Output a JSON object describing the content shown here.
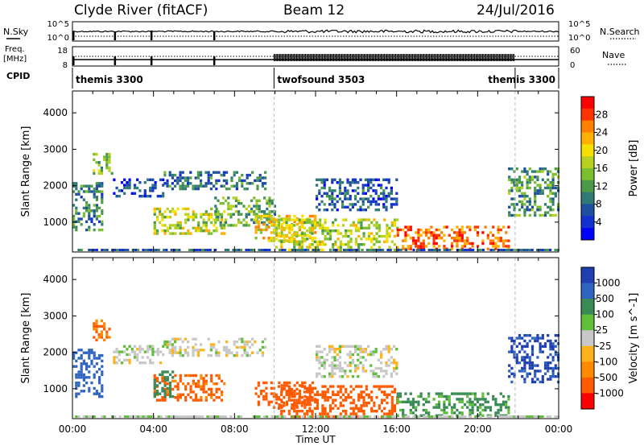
{
  "header": {
    "title": "Clyde River (fitACF)",
    "beam": "Beam 12",
    "date": "24/Jul/2016"
  },
  "nsky_panel": {
    "left_label": "N.Sky",
    "right_label": "N.Search",
    "left_ticks": [
      "10^5",
      "10^0"
    ],
    "right_ticks": [
      "10^5",
      "10^0"
    ]
  },
  "freq_panel": {
    "left_label_line1": "Freq.",
    "left_label_line2": "[MHz]",
    "right_label": "Nave",
    "left_ticks": [
      "18",
      "8"
    ],
    "right_ticks": [
      "60",
      "0"
    ]
  },
  "cpid": {
    "label": "CPID",
    "segments": [
      {
        "name": "themis 3300",
        "start_hour": 0,
        "end_hour": 9.95
      },
      {
        "name": "twofsound 3503",
        "start_hour": 9.95,
        "end_hour": 21.85
      },
      {
        "name": "themis 3300",
        "start_hour": 21.85,
        "end_hour": 24
      }
    ]
  },
  "chart_data": [
    {
      "type": "heatmap",
      "parameter": "Power",
      "ylabel": "Slant Range [km]",
      "yticks": [
        1000,
        2000,
        3000,
        4000
      ],
      "ylim": [
        180,
        4600
      ],
      "xlim": [
        0,
        24
      ],
      "colorbar": {
        "label": "Power [dB]",
        "ticks": [
          "28",
          "24",
          "20",
          "16",
          "12",
          "8",
          "4"
        ],
        "colors": [
          "#ff0000",
          "#ff3300",
          "#ff7f00",
          "#ffb000",
          "#f5e000",
          "#b8d020",
          "#7cbf2e",
          "#4a9a4a",
          "#2f7a75",
          "#1f4fa0",
          "#1330d0",
          "#0000ff"
        ]
      },
      "echo_regions": [
        {
          "t_start": 0.0,
          "t_end": 1.4,
          "r_min": 800,
          "r_max": 2100,
          "level": 0.3
        },
        {
          "t_start": 1.0,
          "t_end": 2.0,
          "r_min": 2300,
          "r_max": 2900,
          "level": 0.45
        },
        {
          "t_start": 2.0,
          "t_end": 4.5,
          "r_min": 1700,
          "r_max": 2200,
          "level": 0.15
        },
        {
          "t_start": 4.0,
          "t_end": 7.5,
          "r_min": 700,
          "r_max": 1400,
          "level": 0.55
        },
        {
          "t_start": 4.5,
          "t_end": 9.5,
          "r_min": 1900,
          "r_max": 2400,
          "level": 0.25
        },
        {
          "t_start": 7.0,
          "t_end": 10.0,
          "r_min": 900,
          "r_max": 1700,
          "level": 0.4
        },
        {
          "t_start": 9.0,
          "t_end": 12.0,
          "r_min": 500,
          "r_max": 1200,
          "level": 0.65
        },
        {
          "t_start": 10.0,
          "t_end": 16.0,
          "r_min": 200,
          "r_max": 1100,
          "level": 0.55
        },
        {
          "t_start": 12.0,
          "t_end": 16.0,
          "r_min": 1300,
          "r_max": 2200,
          "level": 0.2
        },
        {
          "t_start": 16.0,
          "t_end": 21.5,
          "r_min": 250,
          "r_max": 900,
          "level": 0.85
        },
        {
          "t_start": 21.5,
          "t_end": 24.0,
          "r_min": 1200,
          "r_max": 2500,
          "level": 0.35
        }
      ]
    },
    {
      "type": "heatmap",
      "parameter": "Velocity",
      "ylabel": "Slant Range [km]",
      "xlabel": "Time UT",
      "yticks": [
        1000,
        2000,
        3000,
        4000
      ],
      "ylim": [
        180,
        4600
      ],
      "xlim": [
        0,
        24
      ],
      "xtick_labels": [
        "00:00",
        "04:00",
        "08:00",
        "12:00",
        "16:00",
        "20:00",
        "00:00"
      ],
      "colorbar": {
        "label": "Velocity [m s^-1]",
        "ticks": [
          "1000",
          "500",
          "100",
          "25",
          "-25",
          "-100",
          "-500",
          "-1000"
        ],
        "colors": [
          "#1f3fb0",
          "#2f65c0",
          "#3a8a55",
          "#5fbf3a",
          "#c8c8c8",
          "#ffb31a",
          "#ff8a00",
          "#ff5a00",
          "#ff0000"
        ]
      },
      "echo_regions": [
        {
          "t_start": 0.0,
          "t_end": 1.4,
          "r_min": 800,
          "r_max": 2100,
          "velocity": 600
        },
        {
          "t_start": 1.0,
          "t_end": 2.0,
          "r_min": 2300,
          "r_max": 2900,
          "velocity": -300
        },
        {
          "t_start": 2.0,
          "t_end": 4.5,
          "r_min": 1700,
          "r_max": 2200,
          "velocity": 0
        },
        {
          "t_start": 4.0,
          "t_end": 7.5,
          "r_min": 700,
          "r_max": 1400,
          "velocity": -350
        },
        {
          "t_start": 4.0,
          "t_end": 5.0,
          "r_min": 800,
          "r_max": 1500,
          "velocity": 200
        },
        {
          "t_start": 4.5,
          "t_end": 9.5,
          "r_min": 1900,
          "r_max": 2400,
          "velocity": 0
        },
        {
          "t_start": 9.0,
          "t_end": 12.0,
          "r_min": 500,
          "r_max": 1200,
          "velocity": -500
        },
        {
          "t_start": 10.0,
          "t_end": 16.0,
          "r_min": 200,
          "r_max": 1100,
          "velocity": -400
        },
        {
          "t_start": 12.0,
          "t_end": 16.0,
          "r_min": 1300,
          "r_max": 2200,
          "velocity": 0
        },
        {
          "t_start": 16.0,
          "t_end": 21.5,
          "r_min": 250,
          "r_max": 900,
          "velocity": 80
        },
        {
          "t_start": 21.5,
          "t_end": 24.0,
          "r_min": 1200,
          "r_max": 2500,
          "velocity": 800
        }
      ]
    }
  ]
}
